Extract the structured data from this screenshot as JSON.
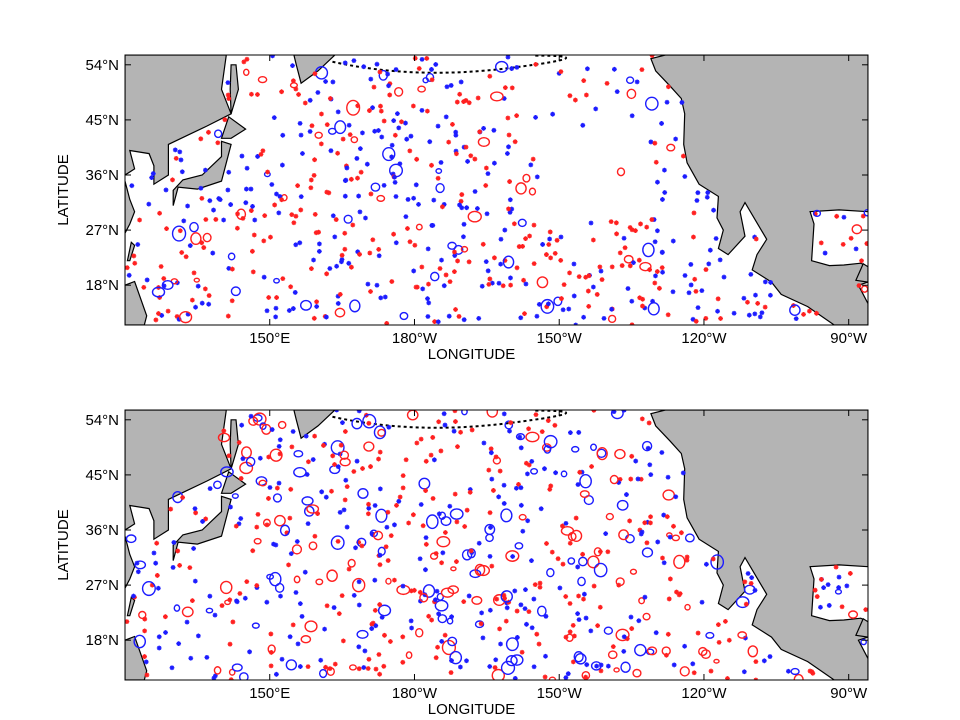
{
  "panels": [
    {
      "xlabel": "LONGITUDE",
      "ylabel": "LATITUDE",
      "xlim": [
        120,
        274
      ],
      "ylim": [
        11.5,
        55.6
      ],
      "xticks": [
        {
          "value": 150,
          "label": "150°E"
        },
        {
          "value": 180,
          "label": "180°W"
        },
        {
          "value": 210,
          "label": "150°W"
        },
        {
          "value": 240,
          "label": "120°W"
        },
        {
          "value": 270,
          "label": "90°W"
        }
      ],
      "yticks": [
        {
          "value": 54,
          "label": "54°N"
        },
        {
          "value": 45,
          "label": "45°N"
        },
        {
          "value": 36,
          "label": "36°N"
        },
        {
          "value": 27,
          "label": "27°N"
        },
        {
          "value": 18,
          "label": "18°N"
        }
      ]
    },
    {
      "xlabel": "LONGITUDE",
      "ylabel": "LATITUDE",
      "xlim": [
        120,
        274
      ],
      "ylim": [
        11.5,
        55.6
      ],
      "xticks": [
        {
          "value": 150,
          "label": "150°E"
        },
        {
          "value": 180,
          "label": "180°W"
        },
        {
          "value": 210,
          "label": "150°W"
        },
        {
          "value": 240,
          "label": "120°W"
        },
        {
          "value": 270,
          "label": "90°W"
        }
      ],
      "yticks": [
        {
          "value": 54,
          "label": "54°N"
        },
        {
          "value": 45,
          "label": "45°N"
        },
        {
          "value": 36,
          "label": "36°N"
        },
        {
          "value": 27,
          "label": "27°N"
        },
        {
          "value": 18,
          "label": "18°N"
        }
      ]
    }
  ]
}
